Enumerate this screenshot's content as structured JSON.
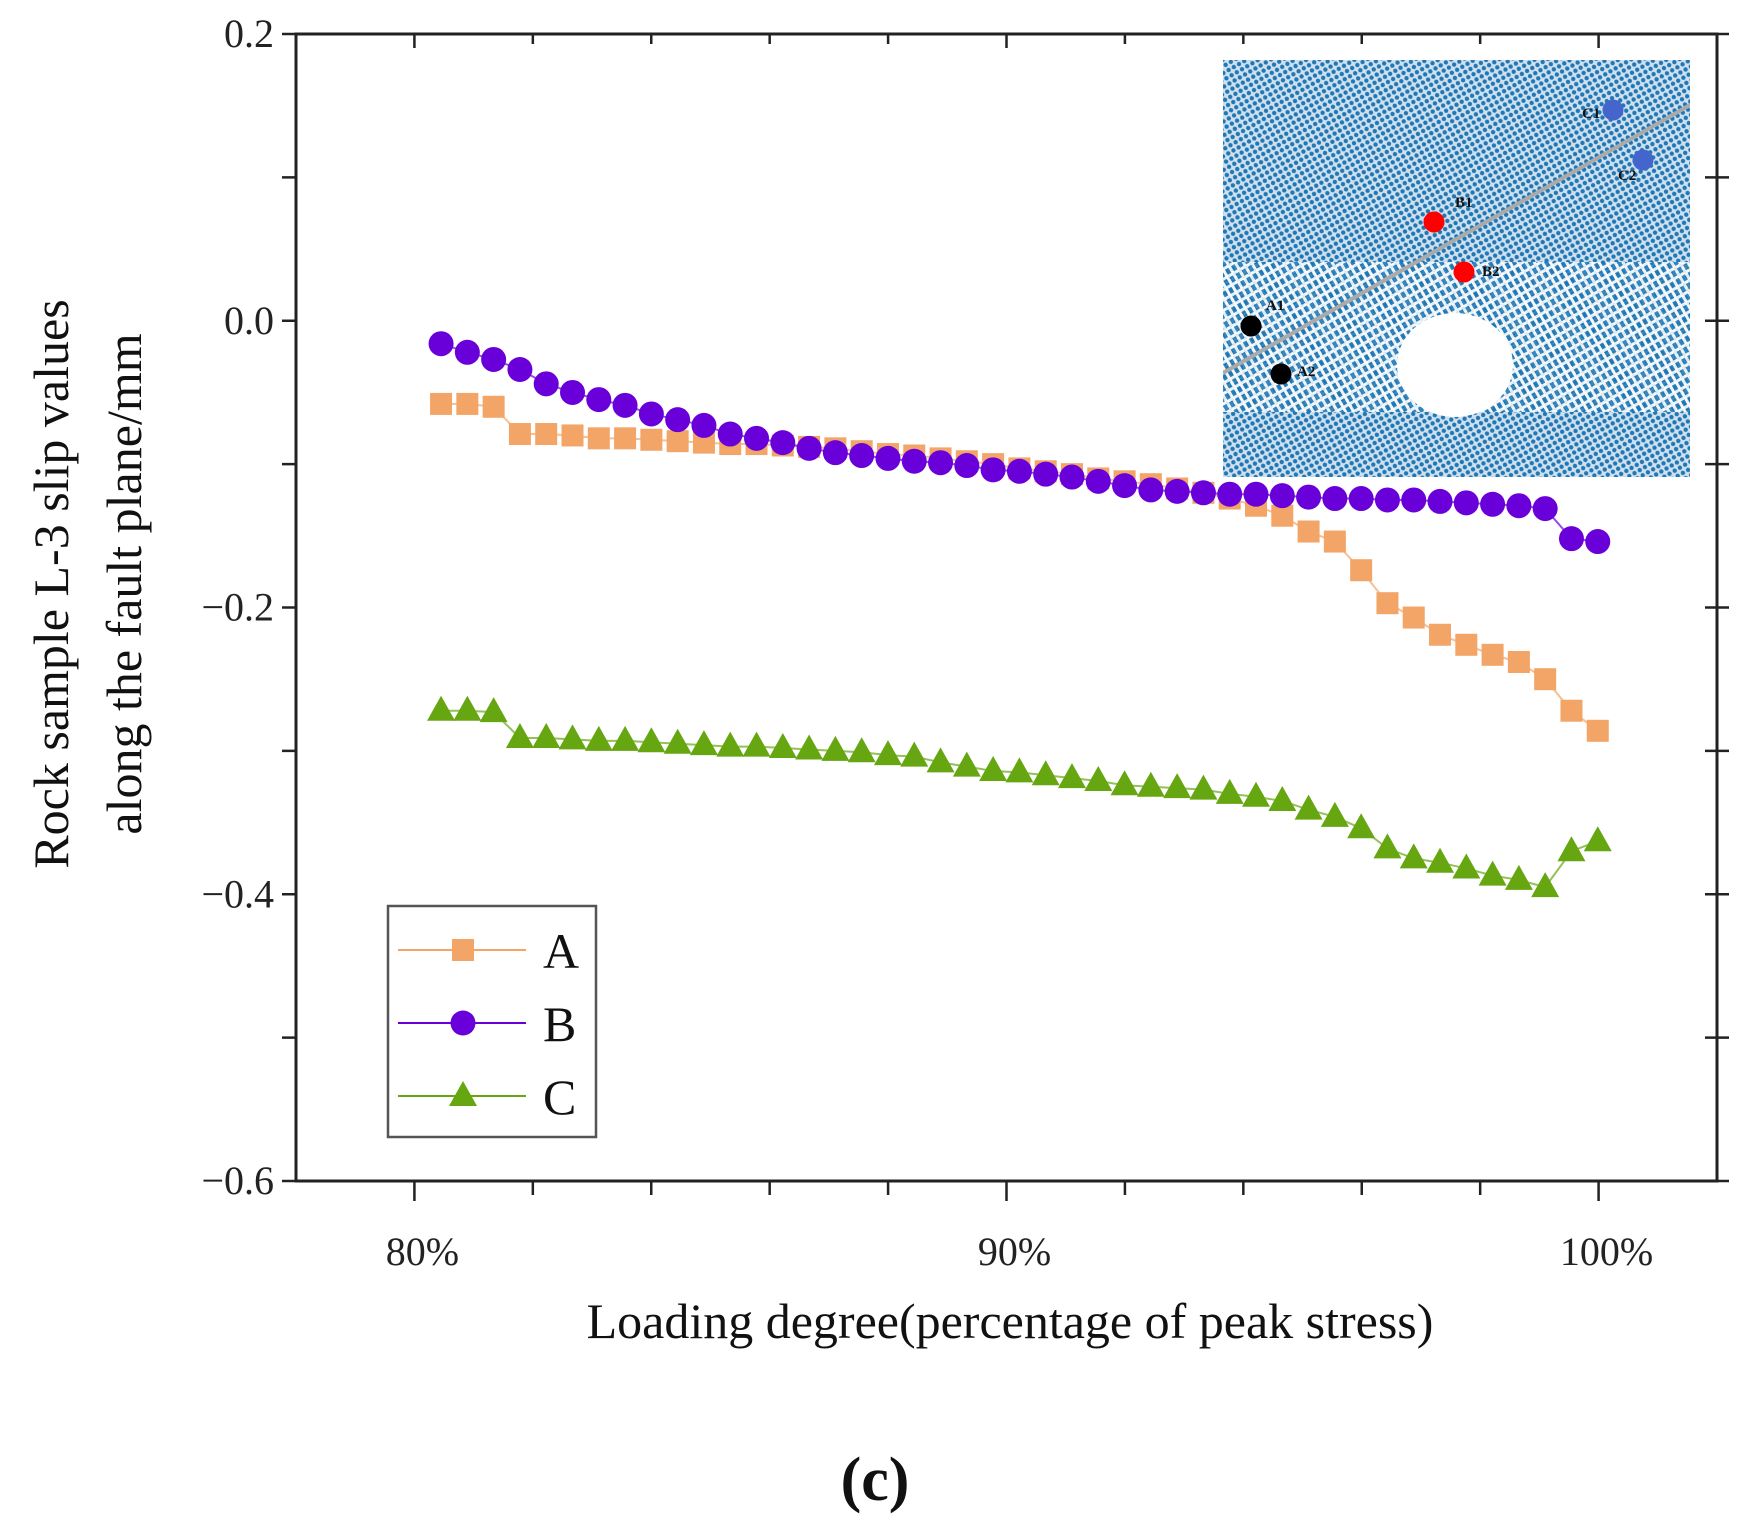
{
  "chart_data": {
    "type": "line",
    "panel_label": "(c)",
    "xlabel": "Loading degree(percentage of peak stress)",
    "ylabel_lines": [
      "Rock sample L-3 slip values",
      "along the fault plane/mm"
    ],
    "xlim": [
      78,
      102
    ],
    "ylim": [
      -0.6,
      0.2
    ],
    "x_ticks": [
      80,
      90,
      100
    ],
    "x_tick_labels": [
      "80%",
      "90%",
      "100%"
    ],
    "x_minor_step": 2,
    "y_ticks": [
      0.2,
      0.0,
      -0.2,
      -0.4,
      -0.6
    ],
    "y_tick_labels": [
      "0.2",
      "0.0",
      "-0.2",
      "-0.4",
      "-0.6"
    ],
    "y_minor_step": 0.1,
    "grid": false,
    "legend_position": "bottom-left",
    "x_start": 80.45,
    "x_step": 0.444,
    "series": [
      {
        "name": "A",
        "marker": "square",
        "color": "#F2A566",
        "values": [
          -0.058,
          -0.058,
          -0.06,
          -0.079,
          -0.079,
          -0.08,
          -0.082,
          -0.082,
          -0.083,
          -0.084,
          -0.085,
          -0.086,
          -0.086,
          -0.087,
          -0.088,
          -0.089,
          -0.091,
          -0.093,
          -0.094,
          -0.096,
          -0.098,
          -0.1,
          -0.103,
          -0.105,
          -0.107,
          -0.11,
          -0.112,
          -0.114,
          -0.117,
          -0.12,
          -0.124,
          -0.129,
          -0.136,
          -0.147,
          -0.154,
          -0.174,
          -0.197,
          -0.207,
          -0.219,
          -0.226,
          -0.233,
          -0.238,
          -0.25,
          -0.272,
          -0.286
        ]
      },
      {
        "name": "B",
        "marker": "circle",
        "color": "#6A00D9",
        "values": [
          -0.016,
          -0.022,
          -0.027,
          -0.034,
          -0.044,
          -0.05,
          -0.055,
          -0.059,
          -0.065,
          -0.069,
          -0.073,
          -0.079,
          -0.082,
          -0.085,
          -0.089,
          -0.092,
          -0.094,
          -0.096,
          -0.098,
          -0.099,
          -0.101,
          -0.104,
          -0.105,
          -0.107,
          -0.109,
          -0.112,
          -0.115,
          -0.118,
          -0.119,
          -0.12,
          -0.121,
          -0.121,
          -0.122,
          -0.123,
          -0.124,
          -0.124,
          -0.125,
          -0.125,
          -0.126,
          -0.127,
          -0.128,
          -0.129,
          -0.131,
          -0.152,
          -0.154
        ]
      },
      {
        "name": "C",
        "marker": "triangle",
        "color": "#66A611",
        "values": [
          -0.272,
          -0.272,
          -0.273,
          -0.291,
          -0.291,
          -0.292,
          -0.293,
          -0.293,
          -0.294,
          -0.295,
          -0.296,
          -0.297,
          -0.297,
          -0.298,
          -0.299,
          -0.3,
          -0.301,
          -0.303,
          -0.304,
          -0.308,
          -0.311,
          -0.314,
          -0.315,
          -0.317,
          -0.319,
          -0.321,
          -0.324,
          -0.325,
          -0.326,
          -0.327,
          -0.33,
          -0.332,
          -0.335,
          -0.341,
          -0.346,
          -0.354,
          -0.368,
          -0.375,
          -0.378,
          -0.382,
          -0.387,
          -0.39,
          -0.395,
          -0.37,
          -0.363
        ]
      }
    ],
    "inset": {
      "points": [
        {
          "label": "A1",
          "color": "#000000"
        },
        {
          "label": "A2",
          "color": "#000000"
        },
        {
          "label": "B1",
          "color": "#FF0000"
        },
        {
          "label": "B2",
          "color": "#FF0000"
        },
        {
          "label": "C1",
          "color": "#4466CC"
        },
        {
          "label": "C2",
          "color": "#4466CC"
        }
      ],
      "particle_color": "#1F77B4",
      "fault_line_color": "#AAAAAA"
    }
  }
}
